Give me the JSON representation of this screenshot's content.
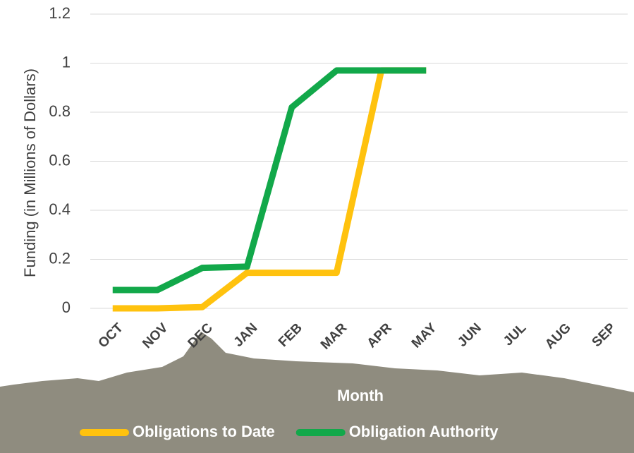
{
  "chart_data": {
    "type": "line",
    "y_label": "Funding (in Millions of Dollars)",
    "x_label": "Month",
    "categories": [
      "OCT",
      "NOV",
      "DEC",
      "JAN",
      "FEB",
      "MAR",
      "APR",
      "MAY",
      "JUN",
      "JUL",
      "AUG",
      "SEP"
    ],
    "series": [
      {
        "name": "Obligations to Date",
        "color": "#ffc20e",
        "values": [
          0,
          0,
          0.005,
          0.145,
          0.145,
          0.145,
          0.97,
          0.97,
          null,
          null,
          null,
          null
        ]
      },
      {
        "name": "Obligation Authority",
        "color": "#12a84a",
        "values": [
          0.075,
          0.075,
          0.165,
          0.17,
          0.82,
          0.97,
          0.97,
          0.97,
          null,
          null,
          null,
          null
        ]
      }
    ],
    "ylim": [
      0,
      1.2
    ],
    "yticks": [
      0,
      0.2,
      0.4,
      0.6,
      0.8,
      1,
      1.2
    ],
    "grid": true
  }
}
